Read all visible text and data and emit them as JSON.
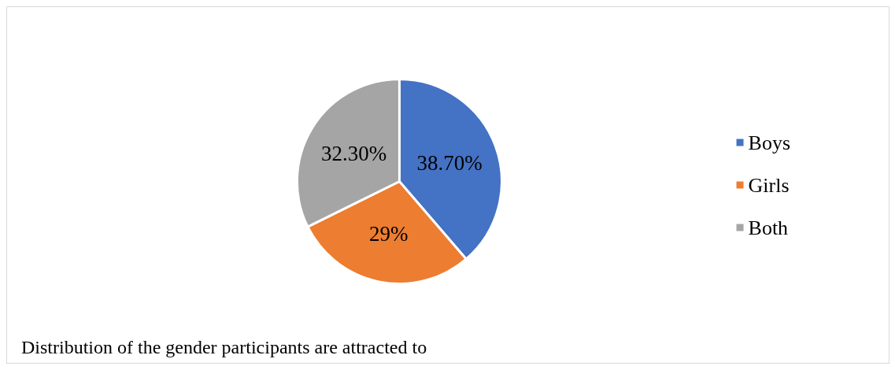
{
  "chart_data": {
    "type": "pie",
    "categories": [
      "Boys",
      "Girls",
      "Both"
    ],
    "values": [
      38.7,
      29,
      32.3
    ],
    "value_labels": [
      "38.70%",
      "29%",
      "32.30%"
    ],
    "colors": [
      "#4472c4",
      "#ed7d31",
      "#a5a5a5"
    ],
    "legend": "right",
    "annotations": [
      "Distribution of the gender participants are attracted to"
    ]
  }
}
